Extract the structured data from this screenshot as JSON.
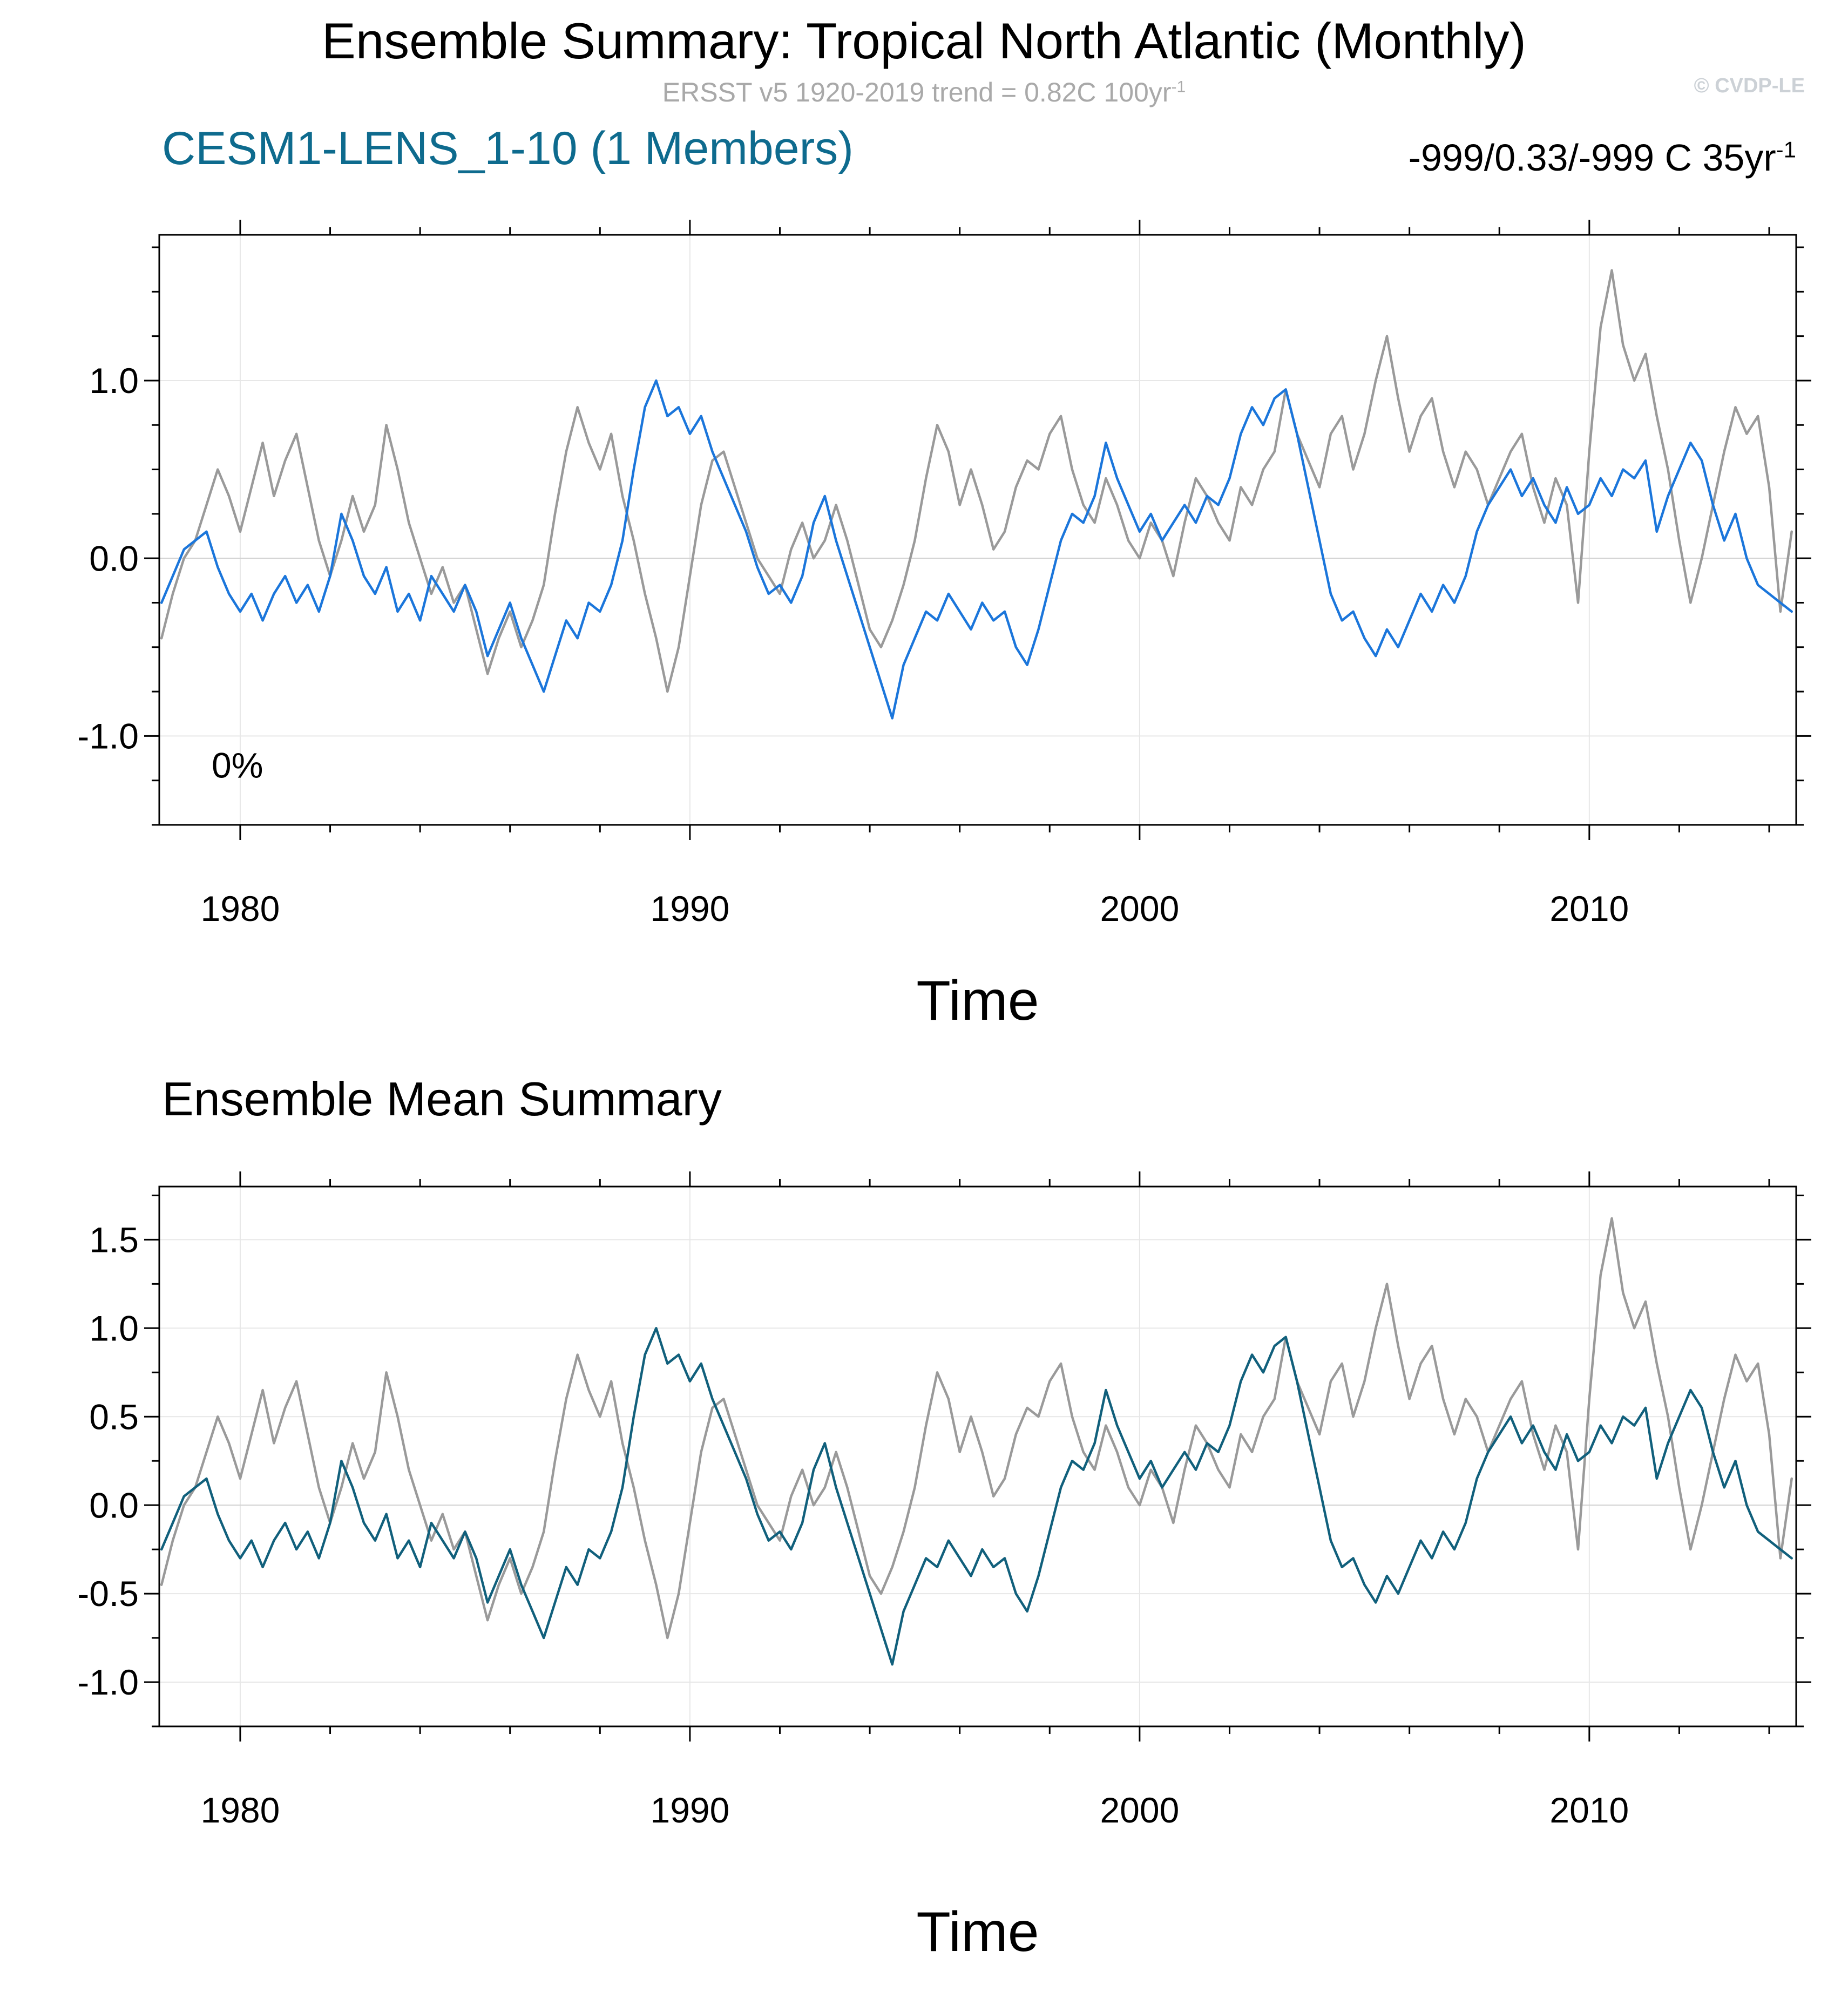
{
  "header": {
    "subtitle_text": "ERSST v5 1920-2019 trend = 0.82C 100yr",
    "subtitle_sup": "-1",
    "watermark": "© CVDP-LE",
    "model_label": "CESM1-LENS_1-10 (1 Members)",
    "model_label_color": "#0e6b8e",
    "stats_label": "-999/0.33/-999 C 35yr",
    "stats_label_sup": "-1"
  },
  "colors": {
    "obs_gray": "#9a9a9a",
    "member_blue": "#1b76db",
    "mean_teal": "#11607c",
    "grid": "#e7e7e7",
    "grid_zero": "#d2d2d2",
    "axis": "#000000"
  },
  "chart_data": [
    {
      "type": "line",
      "title": "Ensemble Summary: Tropical North Atlantic (Monthly)",
      "xlabel": "Time",
      "ylabel": "",
      "annotation": "0%",
      "xlim": [
        1978.2,
        2014.6
      ],
      "ylim": [
        -1.5,
        1.82
      ],
      "xticks": [
        1980,
        1990,
        2000,
        2010
      ],
      "xtick_labels": [
        "1980",
        "1990",
        "2000",
        "2010"
      ],
      "yticks": [
        1.0,
        0.0,
        -1.0
      ],
      "ytick_labels": [
        "1.0",
        "0.0",
        "-1.0"
      ],
      "x_minor_step": 2,
      "y_minor_step": 0.25,
      "grid": true,
      "legend": "none",
      "x_start": 1978.25,
      "x_step": 0.25,
      "series": [
        {
          "name": "ERSST v5 (observations)",
          "line_name": "obs-line",
          "color": "#9a9a9a",
          "values": [
            -0.45,
            -0.2,
            0,
            0.1,
            0.3,
            0.5,
            0.35,
            0.15,
            0.4,
            0.65,
            0.35,
            0.55,
            0.7,
            0.4,
            0.1,
            -0.1,
            0.1,
            0.35,
            0.15,
            0.3,
            0.75,
            0.5,
            0.2,
            0,
            -0.2,
            -0.05,
            -0.25,
            -0.15,
            -0.4,
            -0.65,
            -0.45,
            -0.3,
            -0.5,
            -0.35,
            -0.15,
            0.25,
            0.6,
            0.85,
            0.65,
            0.5,
            0.7,
            0.35,
            0.1,
            -0.2,
            -0.45,
            -0.75,
            -0.5,
            -0.1,
            0.3,
            0.55,
            0.6,
            0.4,
            0.2,
            0,
            -0.1,
            -0.2,
            0.05,
            0.2,
            0,
            0.1,
            0.3,
            0.1,
            -0.15,
            -0.4,
            -0.5,
            -0.35,
            -0.15,
            0.1,
            0.45,
            0.75,
            0.6,
            0.3,
            0.5,
            0.3,
            0.05,
            0.15,
            0.4,
            0.55,
            0.5,
            0.7,
            0.8,
            0.5,
            0.3,
            0.2,
            0.45,
            0.3,
            0.1,
            0,
            0.2,
            0.1,
            -0.1,
            0.2,
            0.45,
            0.35,
            0.2,
            0.1,
            0.4,
            0.3,
            0.5,
            0.6,
            0.95,
            0.7,
            0.55,
            0.4,
            0.7,
            0.8,
            0.5,
            0.7,
            1,
            1.25,
            0.9,
            0.6,
            0.8,
            0.9,
            0.6,
            0.4,
            0.6,
            0.5,
            0.3,
            0.45,
            0.6,
            0.7,
            0.4,
            0.2,
            0.45,
            0.3,
            -0.25,
            0.6,
            1.3,
            1.62,
            1.2,
            1,
            1.15,
            0.8,
            0.5,
            0.1,
            -0.25,
            0,
            0.3,
            0.6,
            0.85,
            0.7,
            0.8,
            0.4,
            -0.3,
            0.15
          ]
        },
        {
          "name": "CESM1-LENS_1-10 member 1",
          "line_name": "member-line",
          "color": "#1b76db",
          "values": [
            -0.25,
            -0.1,
            0.05,
            0.1,
            0.15,
            -0.05,
            -0.2,
            -0.3,
            -0.2,
            -0.35,
            -0.2,
            -0.1,
            -0.25,
            -0.15,
            -0.3,
            -0.1,
            0.25,
            0.1,
            -0.1,
            -0.2,
            -0.05,
            -0.3,
            -0.2,
            -0.35,
            -0.1,
            -0.2,
            -0.3,
            -0.15,
            -0.3,
            -0.55,
            -0.4,
            -0.25,
            -0.45,
            -0.6,
            -0.75,
            -0.55,
            -0.35,
            -0.45,
            -0.25,
            -0.3,
            -0.15,
            0.1,
            0.5,
            0.85,
            1,
            0.8,
            0.85,
            0.7,
            0.8,
            0.6,
            0.45,
            0.3,
            0.15,
            -0.05,
            -0.2,
            -0.15,
            -0.25,
            -0.1,
            0.2,
            0.35,
            0.1,
            -0.1,
            -0.3,
            -0.5,
            -0.7,
            -0.9,
            -0.6,
            -0.45,
            -0.3,
            -0.35,
            -0.2,
            -0.3,
            -0.4,
            -0.25,
            -0.35,
            -0.3,
            -0.5,
            -0.6,
            -0.4,
            -0.15,
            0.1,
            0.25,
            0.2,
            0.35,
            0.65,
            0.45,
            0.3,
            0.15,
            0.25,
            0.1,
            0.2,
            0.3,
            0.2,
            0.35,
            0.3,
            0.45,
            0.7,
            0.85,
            0.75,
            0.9,
            0.95,
            0.7,
            0.4,
            0.1,
            -0.2,
            -0.35,
            -0.3,
            -0.45,
            -0.55,
            -0.4,
            -0.5,
            -0.35,
            -0.2,
            -0.3,
            -0.15,
            -0.25,
            -0.1,
            0.15,
            0.3,
            0.4,
            0.5,
            0.35,
            0.45,
            0.3,
            0.2,
            0.4,
            0.25,
            0.3,
            0.45,
            0.35,
            0.5,
            0.45,
            0.55,
            0.15,
            0.35,
            0.5,
            0.65,
            0.55,
            0.3,
            0.1,
            0.25,
            0,
            -0.15,
            -0.2,
            -0.25,
            -0.3
          ]
        }
      ]
    },
    {
      "type": "line",
      "title": "Ensemble Mean Summary",
      "xlabel": "Time",
      "ylabel": "",
      "annotation": "",
      "xlim": [
        1978.2,
        2014.6
      ],
      "ylim": [
        -1.25,
        1.8
      ],
      "xticks": [
        1980,
        1990,
        2000,
        2010
      ],
      "xtick_labels": [
        "1980",
        "1990",
        "2000",
        "2010"
      ],
      "yticks": [
        1.5,
        1.0,
        0.5,
        0.0,
        -0.5,
        -1.0
      ],
      "ytick_labels": [
        "1.5",
        "1.0",
        "0.5",
        "0.0",
        "-0.5",
        "-1.0"
      ],
      "x_minor_step": 2,
      "y_minor_step": 0.25,
      "grid": true,
      "legend": "none",
      "x_start": 1978.25,
      "x_step": 0.25,
      "series": [
        {
          "name": "ERSST v5 (observations)",
          "line_name": "obs-line",
          "color": "#9a9a9a",
          "values_from": [
            0,
            0
          ]
        },
        {
          "name": "CESM1-LENS_1-10 ensemble mean",
          "line_name": "ensemble-mean-line",
          "color": "#11607c",
          "values_from": [
            0,
            1
          ]
        }
      ]
    }
  ]
}
